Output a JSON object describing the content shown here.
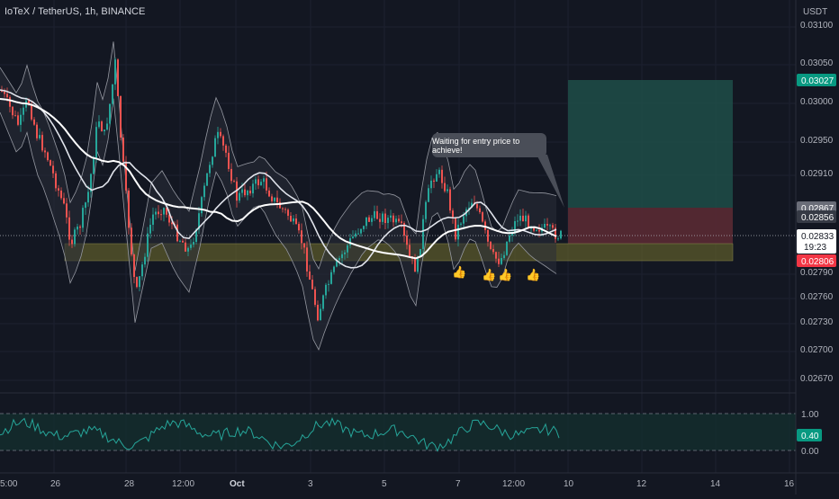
{
  "header": {
    "symbol_line": "IoTeX / TetherUS, 1h, BINANCE"
  },
  "annotation": {
    "callout_text": "Waiting for entry price to achieve!"
  },
  "thumbs": [
    {
      "icon": "thumbs-up-icon",
      "glyph": "👍"
    },
    {
      "icon": "thumbs-up-icon",
      "glyph": "👍"
    },
    {
      "icon": "thumbs-up-icon",
      "glyph": "👍"
    },
    {
      "icon": "thumbs-up-icon",
      "glyph": "👍"
    }
  ],
  "price_scale": {
    "currency": "USDT",
    "ticks": [
      "0.03100",
      "0.03050",
      "0.03000",
      "0.02950",
      "0.02910",
      "0.02790",
      "0.02760",
      "0.02730",
      "0.02700",
      "0.02670"
    ]
  },
  "price_badges": {
    "target": "0.03027",
    "level_a": "0.02867",
    "level_b": "0.02856",
    "current_price": "0.02833",
    "countdown": "19:23",
    "stop": "0.02806"
  },
  "oscillator": {
    "ticks": [
      "1.00",
      "0.00"
    ],
    "current": "0.40"
  },
  "time_axis": {
    "labels": [
      "5:00",
      "26",
      "28",
      "12:00",
      "Oct",
      "3",
      "5",
      "7",
      "12:00",
      "10",
      "12",
      "14",
      "16"
    ]
  },
  "colors": {
    "background": "#131722",
    "candle_up": "#26a69a",
    "candle_down": "#ef5350",
    "target_zone": "#1f4d48",
    "stop_zone": "#5a2a33",
    "support_zone": "#5b5a2b",
    "oscillator_line": "#26a69a",
    "target_badge": "#089981",
    "stop_badge": "#f23645"
  },
  "chart_data": {
    "type": "candlestick",
    "indicators": [
      "Bollinger Bands",
      "Moving Averages",
      "Oscillator (0–1)"
    ],
    "y_range": [
      0.0266,
      0.0312
    ],
    "x_range": [
      "Sep 25",
      "Oct 16"
    ],
    "support_zone": [
      0.02806,
      0.02833
    ],
    "stop_zone": [
      0.02833,
      0.02867
    ],
    "target_zone": [
      0.02867,
      0.03027
    ],
    "current_price": 0.02833,
    "oscillator_value": 0.4,
    "grid": "on"
  }
}
